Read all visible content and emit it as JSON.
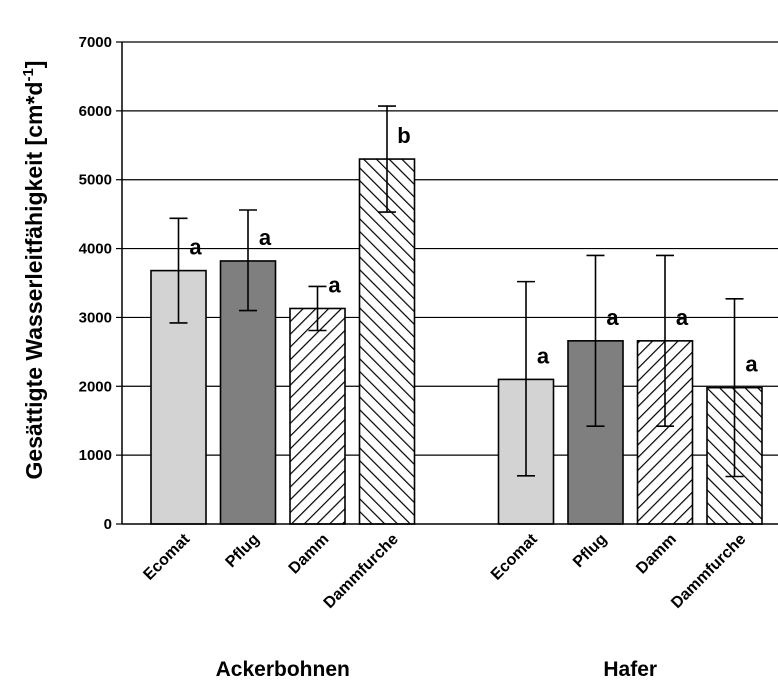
{
  "chart_data": {
    "type": "bar",
    "ylabel": "Gesättigte Wasserleitfähigkeit [cm*d",
    "ylabel_sup": "-1",
    "ylabel_close": "]",
    "ylim": [
      0,
      7000
    ],
    "yticks": [
      0,
      1000,
      2000,
      3000,
      4000,
      5000,
      6000,
      7000
    ],
    "grid": true,
    "groups": [
      {
        "name": "Ackerbohnen",
        "bars": [
          {
            "category": "Ecomat",
            "value": 3680,
            "err_low": 2920,
            "err_high": 4440,
            "label": "a",
            "pattern": "light"
          },
          {
            "category": "Pflug",
            "value": 3820,
            "err_low": 3100,
            "err_high": 4560,
            "label": "a",
            "pattern": "dark"
          },
          {
            "category": "Damm",
            "value": 3130,
            "err_low": 2810,
            "err_high": 3450,
            "label": "a",
            "pattern": "hatch-right"
          },
          {
            "category": "Dammfurche",
            "value": 5300,
            "err_low": 4530,
            "err_high": 6070,
            "label": "b",
            "pattern": "hatch-left"
          }
        ]
      },
      {
        "name": "Hafer",
        "bars": [
          {
            "category": "Ecomat",
            "value": 2100,
            "err_low": 700,
            "err_high": 3520,
            "label": "a",
            "pattern": "light"
          },
          {
            "category": "Pflug",
            "value": 2660,
            "err_low": 1420,
            "err_high": 3900,
            "label": "a",
            "pattern": "dark"
          },
          {
            "category": "Damm",
            "value": 2660,
            "err_low": 1420,
            "err_high": 3900,
            "label": "a",
            "pattern": "hatch-right"
          },
          {
            "category": "Dammfurche",
            "value": 1980,
            "err_low": 690,
            "err_high": 3270,
            "label": "a",
            "pattern": "hatch-left"
          }
        ]
      }
    ],
    "colors": {
      "light": "#d3d3d3",
      "dark": "#7f7f7f",
      "hatch_fill": "#ffffff",
      "hatch_stroke": "#000000",
      "outline": "#000000"
    }
  }
}
